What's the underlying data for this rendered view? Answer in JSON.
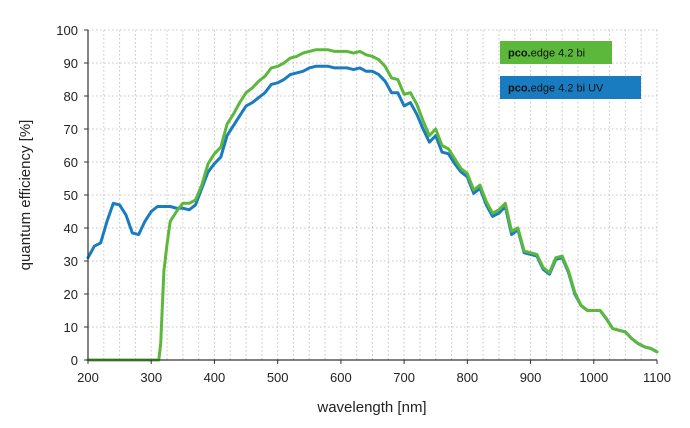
{
  "chart_data": {
    "type": "line",
    "xlabel": "wavelength [nm]",
    "ylabel": "quantum efficiency [%]",
    "xlim": [
      200,
      1100
    ],
    "ylim": [
      0,
      100
    ],
    "x_ticks": [
      "200",
      "300",
      "400",
      "500",
      "600",
      "700",
      "800",
      "900",
      "1000",
      "1100"
    ],
    "y_ticks": [
      "0",
      "10",
      "20",
      "30",
      "40",
      "50",
      "60",
      "70",
      "80",
      "90",
      "100"
    ],
    "grid": true,
    "legend_position": "top-right",
    "series": [
      {
        "name": "pco.edge 4.2 bi UV",
        "legend_bold": "pco.",
        "legend_rest": "edge 4.2 bi UV",
        "color": "#1a7cc0",
        "points": [
          [
            200,
            31
          ],
          [
            210,
            34.5
          ],
          [
            220,
            35.5
          ],
          [
            230,
            42
          ],
          [
            240,
            47.5
          ],
          [
            250,
            47
          ],
          [
            260,
            44
          ],
          [
            270,
            38.5
          ],
          [
            280,
            38
          ],
          [
            290,
            42
          ],
          [
            300,
            45
          ],
          [
            310,
            46.5
          ],
          [
            330,
            46.5
          ],
          [
            340,
            46
          ],
          [
            350,
            46
          ],
          [
            360,
            45.5
          ],
          [
            370,
            47
          ],
          [
            380,
            52
          ],
          [
            390,
            57
          ],
          [
            400,
            59.5
          ],
          [
            410,
            61.5
          ],
          [
            420,
            68
          ],
          [
            430,
            71
          ],
          [
            440,
            74
          ],
          [
            450,
            77
          ],
          [
            460,
            78
          ],
          [
            470,
            79.5
          ],
          [
            480,
            81
          ],
          [
            490,
            83.5
          ],
          [
            500,
            84
          ],
          [
            510,
            85
          ],
          [
            520,
            86.5
          ],
          [
            530,
            87
          ],
          [
            540,
            87.5
          ],
          [
            550,
            88.5
          ],
          [
            560,
            89
          ],
          [
            570,
            89
          ],
          [
            580,
            89
          ],
          [
            590,
            88.5
          ],
          [
            600,
            88.5
          ],
          [
            610,
            88.5
          ],
          [
            620,
            88
          ],
          [
            630,
            88.5
          ],
          [
            640,
            87.5
          ],
          [
            650,
            87.5
          ],
          [
            660,
            86.5
          ],
          [
            670,
            84.5
          ],
          [
            680,
            81
          ],
          [
            690,
            81
          ],
          [
            700,
            77
          ],
          [
            710,
            78
          ],
          [
            720,
            74.5
          ],
          [
            730,
            70
          ],
          [
            740,
            66
          ],
          [
            750,
            68
          ],
          [
            760,
            63
          ],
          [
            770,
            62.5
          ],
          [
            780,
            59.5
          ],
          [
            790,
            57
          ],
          [
            800,
            55.5
          ],
          [
            810,
            50.5
          ],
          [
            820,
            52
          ],
          [
            830,
            47
          ],
          [
            840,
            43.5
          ],
          [
            850,
            44.5
          ],
          [
            860,
            46.5
          ],
          [
            870,
            38
          ],
          [
            880,
            39.5
          ],
          [
            890,
            32.5
          ],
          [
            900,
            32
          ],
          [
            910,
            31.5
          ],
          [
            920,
            27.5
          ],
          [
            930,
            26
          ],
          [
            940,
            30.5
          ],
          [
            950,
            31
          ],
          [
            960,
            26.5
          ],
          [
            970,
            20
          ],
          [
            980,
            16.5
          ],
          [
            990,
            15
          ],
          [
            1000,
            15
          ],
          [
            1010,
            15
          ],
          [
            1020,
            12.5
          ],
          [
            1030,
            9.5
          ],
          [
            1040,
            9
          ],
          [
            1050,
            8.5
          ],
          [
            1060,
            6.5
          ],
          [
            1070,
            5
          ],
          [
            1080,
            4
          ],
          [
            1090,
            3.5
          ],
          [
            1100,
            2.5
          ]
        ]
      },
      {
        "name": "pco.edge 4.2 bi",
        "legend_bold": "pco.",
        "legend_rest": "edge 4.2 bi",
        "color": "#5cb83b",
        "points": [
          [
            200,
            0
          ],
          [
            300,
            0
          ],
          [
            312,
            0
          ],
          [
            315,
            5
          ],
          [
            320,
            27
          ],
          [
            325,
            35
          ],
          [
            330,
            42
          ],
          [
            340,
            45
          ],
          [
            350,
            47.5
          ],
          [
            360,
            47.5
          ],
          [
            370,
            48.5
          ],
          [
            380,
            53
          ],
          [
            390,
            59.5
          ],
          [
            400,
            62.5
          ],
          [
            410,
            64.5
          ],
          [
            420,
            71.5
          ],
          [
            430,
            74.5
          ],
          [
            440,
            78
          ],
          [
            450,
            81
          ],
          [
            460,
            82.5
          ],
          [
            470,
            84.5
          ],
          [
            480,
            86
          ],
          [
            490,
            88.5
          ],
          [
            500,
            89
          ],
          [
            510,
            90
          ],
          [
            520,
            91.5
          ],
          [
            530,
            92
          ],
          [
            540,
            93
          ],
          [
            550,
            93.5
          ],
          [
            560,
            94
          ],
          [
            570,
            94
          ],
          [
            580,
            94
          ],
          [
            590,
            93.5
          ],
          [
            600,
            93.5
          ],
          [
            610,
            93.5
          ],
          [
            620,
            93
          ],
          [
            630,
            93.5
          ],
          [
            640,
            92.5
          ],
          [
            650,
            92
          ],
          [
            660,
            91
          ],
          [
            670,
            89
          ],
          [
            680,
            85.5
          ],
          [
            690,
            85
          ],
          [
            700,
            80.5
          ],
          [
            710,
            81
          ],
          [
            720,
            77.5
          ],
          [
            730,
            72.5
          ],
          [
            740,
            68
          ],
          [
            750,
            70
          ],
          [
            760,
            65
          ],
          [
            770,
            64
          ],
          [
            780,
            61
          ],
          [
            790,
            58
          ],
          [
            800,
            56.5
          ],
          [
            810,
            51.5
          ],
          [
            820,
            53
          ],
          [
            830,
            48
          ],
          [
            840,
            44.5
          ],
          [
            850,
            45.5
          ],
          [
            860,
            47.5
          ],
          [
            870,
            39
          ],
          [
            880,
            40
          ],
          [
            890,
            33
          ],
          [
            900,
            32.5
          ],
          [
            910,
            32
          ],
          [
            920,
            28
          ],
          [
            930,
            26.5
          ],
          [
            940,
            31
          ],
          [
            950,
            31.5
          ],
          [
            960,
            27
          ],
          [
            970,
            20.5
          ],
          [
            980,
            16.5
          ],
          [
            990,
            15
          ],
          [
            1000,
            15
          ],
          [
            1010,
            15
          ],
          [
            1020,
            12.5
          ],
          [
            1030,
            9.5
          ],
          [
            1040,
            9
          ],
          [
            1050,
            8.5
          ],
          [
            1060,
            6.5
          ],
          [
            1070,
            5
          ],
          [
            1080,
            4
          ],
          [
            1090,
            3.5
          ],
          [
            1100,
            2.5
          ]
        ]
      }
    ]
  }
}
